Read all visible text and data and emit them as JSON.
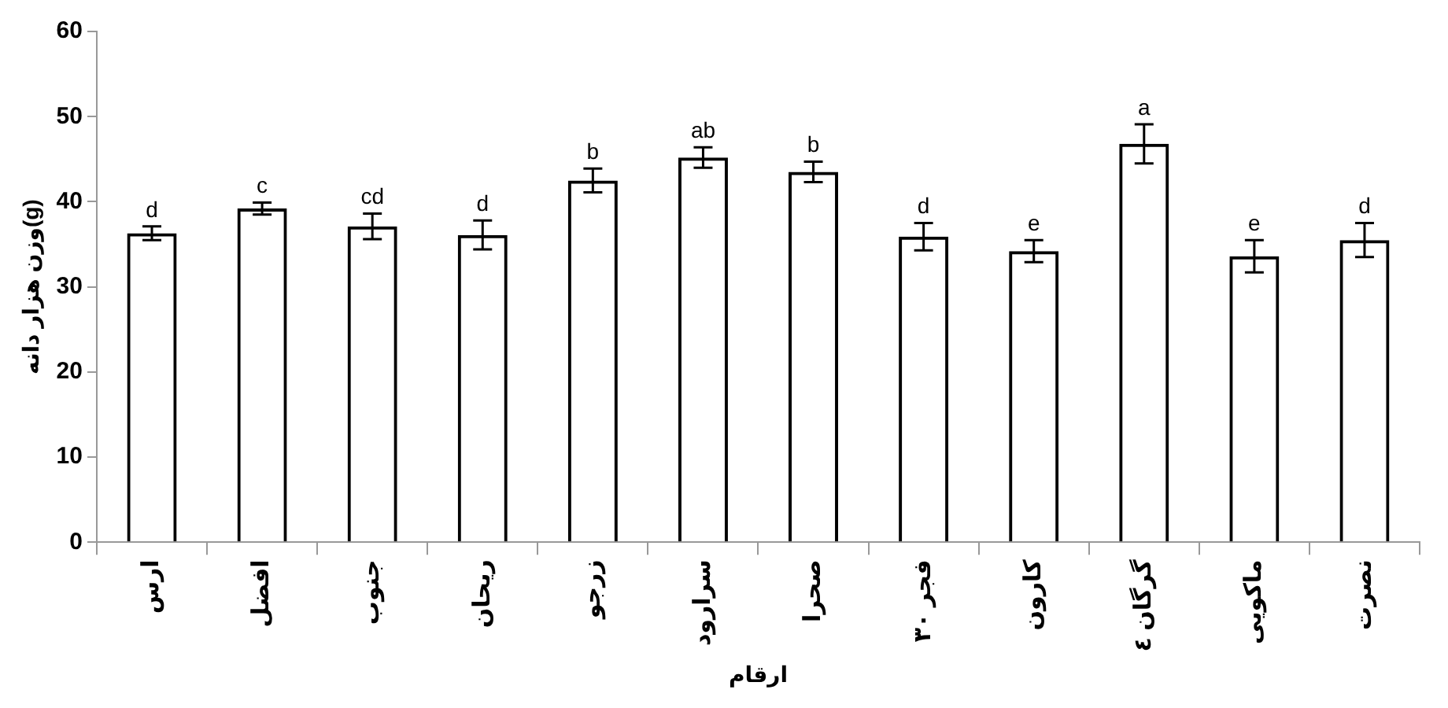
{
  "chart_data": {
    "type": "bar",
    "xlabel": "ارقام",
    "ylabel": "وزن هزار دانه(g)",
    "categories": [
      "ارس",
      "افضل",
      "جنوب",
      "ریحان",
      "زرجو",
      "سرارود",
      "صحرا",
      "فجر ۳۰",
      "کارون",
      "گرگان ٤",
      "ماکویی",
      "نصرت"
    ],
    "values": [
      36.3,
      39.2,
      37.1,
      36.1,
      42.5,
      45.2,
      43.5,
      35.9,
      34.2,
      46.8,
      33.6,
      35.5
    ],
    "errors": [
      0.8,
      0.7,
      1.5,
      1.7,
      1.4,
      1.2,
      1.2,
      1.6,
      1.3,
      2.3,
      1.9,
      2.0
    ],
    "value_labels": [
      "d",
      "c",
      "cd",
      "d",
      "b",
      "ab",
      "b",
      "d",
      "e",
      "a",
      "e",
      "d"
    ],
    "color": "#000000",
    "ylim": [
      0,
      60
    ],
    "yticks": [
      0,
      10,
      20,
      30,
      40,
      50,
      60
    ],
    "grid": false,
    "legend": false
  }
}
